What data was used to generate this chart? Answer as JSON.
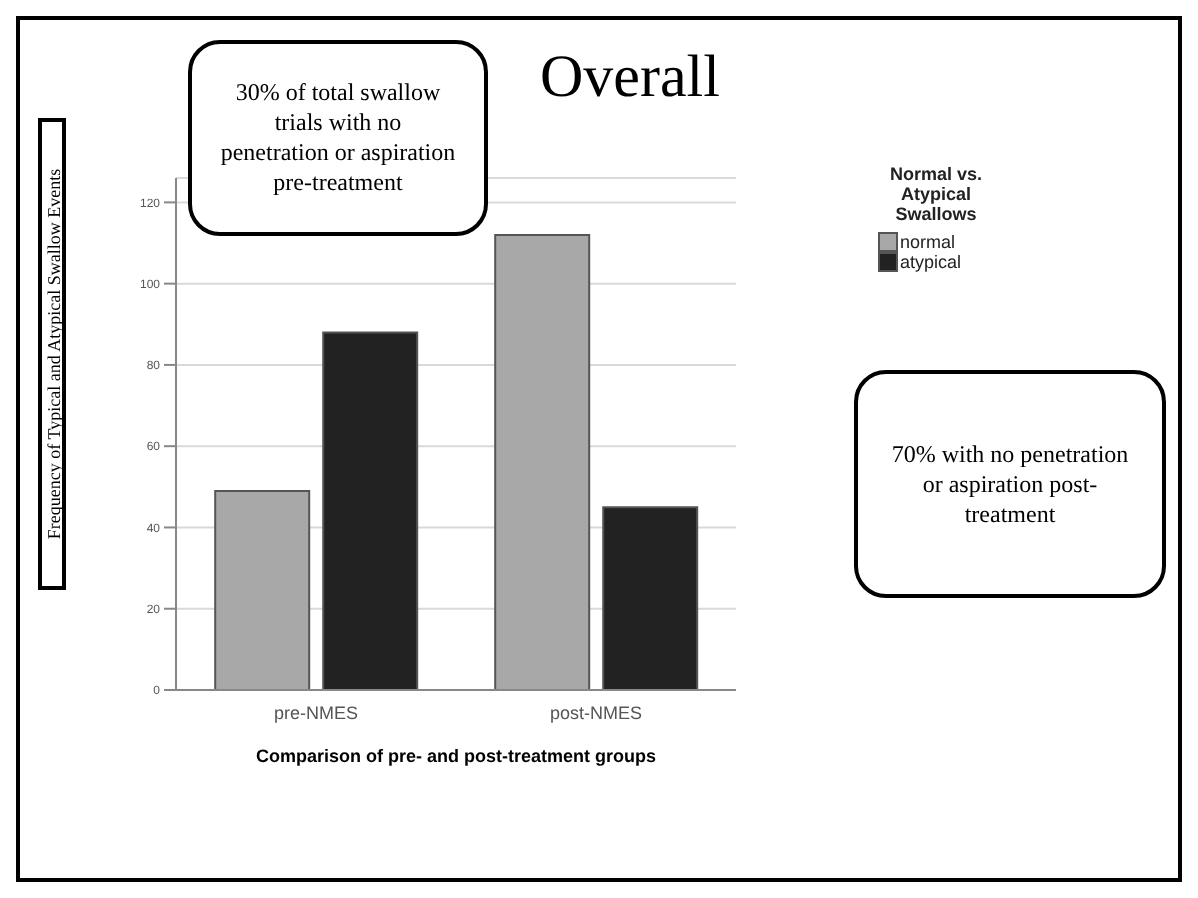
{
  "chart_data": {
    "type": "bar",
    "title": "Overall",
    "xlabel": "Comparison of pre- and post-treatment groups",
    "ylabel": "Frequency of Typical and Atypical Swallow Events",
    "legend_title": "Normal vs. Atypical Swallows",
    "categories": [
      "pre-NMES",
      "post-NMES"
    ],
    "series": [
      {
        "name": "normal",
        "color": "#a8a8a8",
        "values": [
          49,
          112
        ]
      },
      {
        "name": "atypical",
        "color": "#222222",
        "values": [
          88,
          45
        ]
      }
    ],
    "ylim": [
      0,
      126
    ],
    "yticks": [
      0,
      20,
      40,
      60,
      80,
      100,
      120
    ],
    "grid": "y",
    "legend": "top right",
    "annotations": [
      "30% of total swallow trials with no penetration or aspiration pre-treatment",
      "70% with no penetration or aspiration post-treatment"
    ]
  }
}
